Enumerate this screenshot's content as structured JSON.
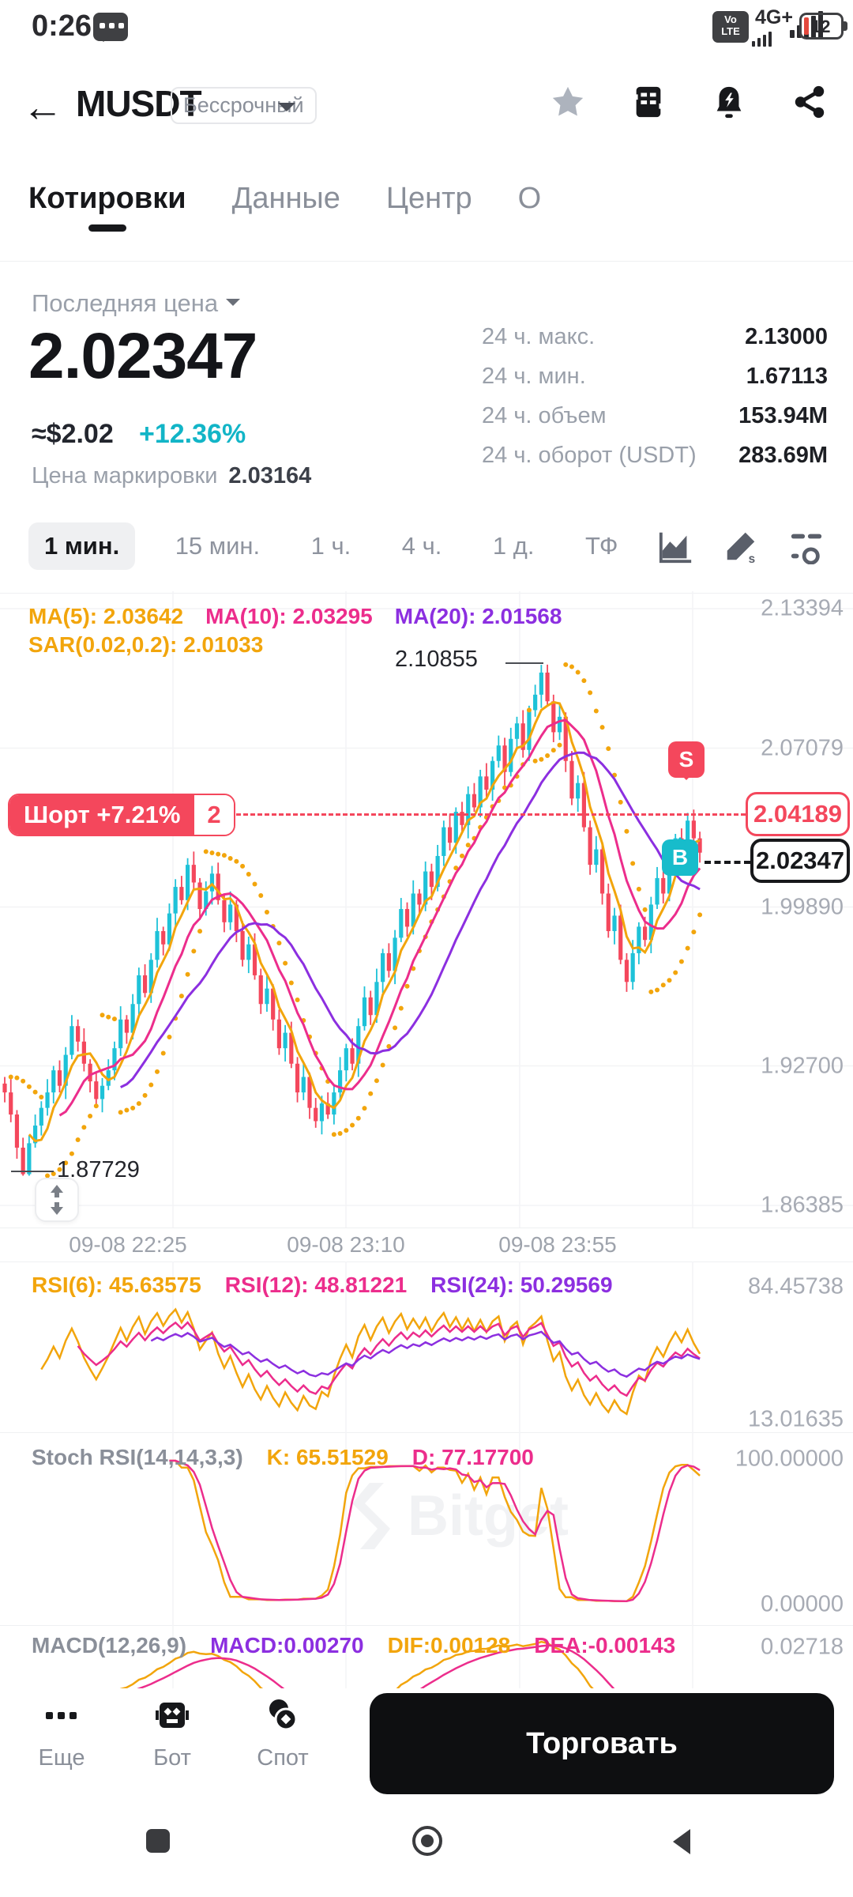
{
  "status_bar": {
    "time": "0:26",
    "network": "4G+",
    "volte_top": "Vo",
    "volte_bottom": "LTE",
    "battery": "12"
  },
  "header": {
    "symbol": "MUSDT",
    "contract_type": "Бессрочный"
  },
  "tabs": [
    {
      "label": "Котировки",
      "active": true
    },
    {
      "label": "Данные",
      "active": false
    },
    {
      "label": "Центр",
      "active": false
    },
    {
      "label": "О",
      "active": false
    }
  ],
  "ticker": {
    "last_price_label": "Последняя цена",
    "last_price": "2.02347",
    "usd_approx": "≈$2.02",
    "change_pct": "+12.36%",
    "mark_price_label": "Цена маркировки",
    "mark_price": "2.03164",
    "stats": [
      {
        "label": "24 ч. макс.",
        "value": "2.13000"
      },
      {
        "label": "24 ч. мин.",
        "value": "1.67113"
      },
      {
        "label": "24 ч. объем",
        "value": "153.94M"
      },
      {
        "label": "24 ч. оборот (USDT)",
        "value": "283.69M"
      }
    ]
  },
  "toolbar": {
    "timeframes": [
      "1 мин.",
      "15 мин.",
      "1 ч.",
      "4 ч.",
      "1 д.",
      "ТФ"
    ],
    "active": "1 мин."
  },
  "watermark": {
    "text": "Bitget"
  },
  "overlays": {
    "high_label": "2.10855",
    "low_label": "1.87729",
    "short_label": "Шорт +7.21%",
    "short_count": "2",
    "entry_price": "2.04189",
    "last_price_box": "2.02347",
    "s_marker": "S",
    "b_marker": "B"
  },
  "price_header": {
    "line1": [
      {
        "text": "MA(5): 2.03642",
        "color": "orange"
      },
      {
        "text": "MA(10): 2.03295",
        "color": "magenta"
      },
      {
        "text": "MA(20): 2.01568",
        "color": "purple"
      }
    ],
    "line2": [
      {
        "text": "SAR(0.02,0.2): 2.01033",
        "color": "orange"
      }
    ]
  },
  "rsi_panel": {
    "header": [
      {
        "text": "RSI(6): 45.63575",
        "color": "orange"
      },
      {
        "text": "RSI(12): 48.81221",
        "color": "magenta"
      },
      {
        "text": "RSI(24): 50.29569",
        "color": "purple"
      }
    ],
    "top_label": "84.45738",
    "bottom_label": "13.01635"
  },
  "stoch_panel": {
    "header": [
      {
        "text": "Stoch RSI(14,14,3,3)",
        "color": "gray"
      },
      {
        "text": "K: 65.51529",
        "color": "orange"
      },
      {
        "text": "D: 77.17700",
        "color": "magenta"
      }
    ],
    "top_label": "100.00000",
    "bottom_label": "0.00000"
  },
  "macd_panel": {
    "header": [
      {
        "text": "MACD(12,26,9)",
        "color": "gray"
      },
      {
        "text": "MACD:0.00270",
        "color": "purple"
      },
      {
        "text": "DIF:0.00128",
        "color": "orange"
      },
      {
        "text": "DEA:-0.00143",
        "color": "magenta"
      }
    ],
    "right_label": "0.02718"
  },
  "bottom_bar": {
    "items": [
      {
        "label": "Еще"
      },
      {
        "label": "Бот"
      },
      {
        "label": "Спот"
      }
    ],
    "trade_button": "Торговать"
  },
  "colors": {
    "up": "#1ec2d8",
    "down": "#f4475c",
    "orange": "#f2a50c",
    "magenta": "#ec2d8c",
    "purple": "#8c2fe0",
    "gray": "#8a8f99",
    "accent_teal": "#12b5c7",
    "grid": "#f3f4f6"
  },
  "chart_data": {
    "type": "candlestick",
    "title": "MUSDT perpetual 1-min chart",
    "y_ticks": [
      "2.13394",
      "2.07079",
      "1.99890",
      "1.92700",
      "1.86385"
    ],
    "x_ticks": [
      "09-08 22:25",
      "09-08 23:10",
      "09-08 23:55"
    ],
    "ylim": [
      1.8565,
      2.142
    ],
    "annotations": {
      "high": 2.10855,
      "low": 1.87729,
      "short_entry": 2.04189,
      "last": 2.02347
    },
    "indicators": {
      "ma": [
        5,
        10,
        20
      ],
      "sar": [
        0.02,
        0.2
      ],
      "rsi": [
        6,
        12,
        24
      ],
      "stoch_rsi": [
        14,
        14,
        3,
        3
      ],
      "macd": [
        12,
        26,
        9
      ]
    },
    "closes": [
      1.915,
      1.905,
      1.89,
      1.878,
      1.892,
      1.9,
      1.908,
      1.915,
      1.925,
      1.918,
      1.932,
      1.945,
      1.938,
      1.928,
      1.92,
      1.912,
      1.918,
      1.925,
      1.935,
      1.948,
      1.942,
      1.955,
      1.968,
      1.96,
      1.975,
      1.988,
      1.982,
      1.996,
      2.008,
      2.002,
      2.018,
      2.01,
      1.998,
      2.006,
      2.014,
      2.002,
      1.992,
      2.0,
      1.988,
      1.975,
      1.982,
      1.968,
      1.955,
      1.962,
      1.948,
      1.935,
      1.942,
      1.928,
      1.915,
      1.922,
      1.908,
      1.902,
      1.91,
      1.905,
      1.915,
      1.925,
      1.935,
      1.928,
      1.945,
      1.958,
      1.95,
      1.965,
      1.978,
      1.97,
      1.985,
      1.998,
      1.99,
      2.005,
      2.0,
      2.015,
      2.008,
      2.022,
      2.035,
      2.028,
      2.042,
      2.036,
      2.05,
      2.044,
      2.058,
      2.052,
      2.065,
      2.072,
      2.06,
      2.075,
      2.082,
      2.07,
      2.088,
      2.095,
      2.105,
      2.092,
      2.078,
      2.085,
      2.065,
      2.048,
      2.055,
      2.035,
      2.018,
      2.025,
      2.005,
      1.988,
      1.995,
      1.975,
      1.965,
      1.978,
      1.99,
      1.984,
      2.0,
      2.012,
      2.005,
      2.018,
      2.03,
      2.024,
      2.038,
      2.03,
      2.0235
    ]
  }
}
